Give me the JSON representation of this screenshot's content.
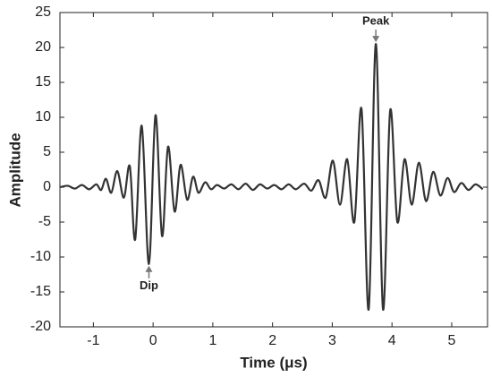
{
  "chart_data": {
    "type": "line",
    "xlabel": "Time (μs)",
    "ylabel": "Amplitude",
    "xlim": [
      -1.56,
      5.6
    ],
    "ylim": [
      -20,
      25
    ],
    "xticks": [
      -1,
      0,
      1,
      2,
      3,
      4,
      5
    ],
    "yticks": [
      -20,
      -15,
      -10,
      -5,
      0,
      5,
      10,
      15,
      20,
      25
    ],
    "grid": false,
    "series": [
      {
        "color": "#333333",
        "x": [
          -1.55,
          -1.43,
          -1.31,
          -1.19,
          -1.07,
          -0.95,
          -0.87,
          -0.79,
          -0.7,
          -0.6,
          -0.49,
          -0.39,
          -0.3,
          -0.19,
          -0.07,
          0.04,
          0.15,
          0.25,
          0.36,
          0.46,
          0.57,
          0.67,
          0.76,
          0.87,
          0.97,
          1.07,
          1.19,
          1.31,
          1.43,
          1.55,
          1.67,
          1.79,
          1.91,
          2.03,
          2.15,
          2.27,
          2.39,
          2.53,
          2.65,
          2.77,
          2.89,
          3.01,
          3.13,
          3.25,
          3.37,
          3.49,
          3.61,
          3.73,
          3.85,
          3.97,
          4.09,
          4.21,
          4.33,
          4.45,
          4.57,
          4.69,
          4.81,
          4.93,
          5.04,
          5.16,
          5.28,
          5.4,
          5.52
        ],
        "values": [
          0,
          0.2,
          -0.2,
          0.3,
          -0.3,
          0.4,
          -0.4,
          1.2,
          -0.8,
          2.3,
          -1.5,
          3.0,
          -7.5,
          8.8,
          -11.0,
          10.3,
          -7.0,
          5.8,
          -3.5,
          3.2,
          -1.8,
          1.5,
          -0.8,
          0.7,
          -0.3,
          0.3,
          -0.2,
          0.4,
          -0.3,
          0.5,
          -0.4,
          0.4,
          -0.2,
          0.3,
          -0.3,
          0.4,
          -0.3,
          0.5,
          -0.5,
          1.0,
          -1.5,
          3.8,
          -2.5,
          4.0,
          -5.0,
          11.2,
          -17.5,
          20.5,
          -17.5,
          11.0,
          -5.0,
          4.0,
          -2.5,
          3.5,
          -2.0,
          2.2,
          -1.2,
          1.3,
          -0.7,
          0.6,
          -0.4,
          0.4,
          -0.3
        ]
      }
    ],
    "annotations": [
      {
        "text": "Peak",
        "x": 3.73,
        "y": 20.5,
        "dir": "down"
      },
      {
        "text": "Dip",
        "x": -0.07,
        "y": -11.0,
        "dir": "up"
      }
    ]
  }
}
